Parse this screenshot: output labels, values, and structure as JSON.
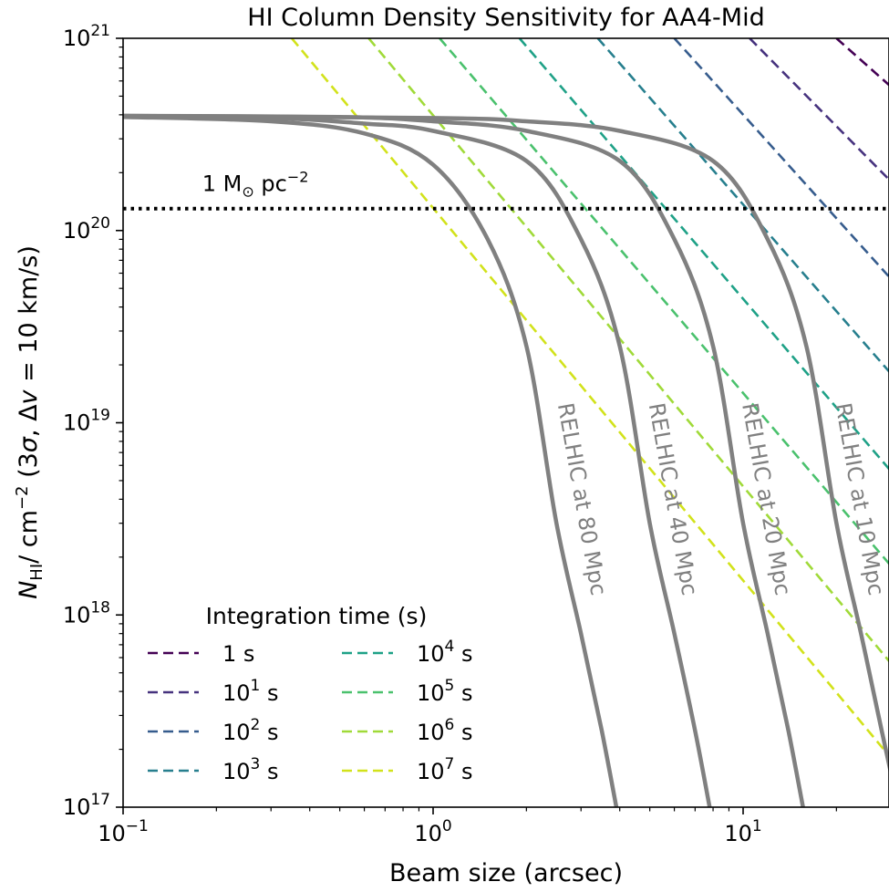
{
  "chart_data": {
    "type": "line",
    "title": "HI Column Density Sensitivity for AA4-Mid",
    "xlabel": "Beam size (arcsec)",
    "ylabel": {
      "prefix": "N",
      "prefix_sub": "HI",
      "unit": "/ cm",
      "unit_sup": "−2",
      "paren_open": " (3",
      "sigma": "σ",
      "comma": ", Δ",
      "nu": "v",
      "rest": " = 10 km/s)"
    },
    "x_scale": "log",
    "y_scale": "log",
    "xlim": [
      0.1,
      30
    ],
    "ylim": [
      1e+17,
      1e+21
    ],
    "x_ticks": [
      {
        "value": 0.1,
        "base": "10",
        "exp": "−1"
      },
      {
        "value": 1,
        "base": "10",
        "exp": "0"
      },
      {
        "value": 10,
        "base": "10",
        "exp": "1"
      }
    ],
    "y_ticks": [
      {
        "value": 1e+17,
        "base": "10",
        "exp": "17"
      },
      {
        "value": 1e+18,
        "base": "10",
        "exp": "18"
      },
      {
        "value": 1e+19,
        "base": "10",
        "exp": "19"
      },
      {
        "value": 1e+20,
        "base": "10",
        "exp": "20"
      },
      {
        "value": 1e+21,
        "base": "10",
        "exp": "21"
      }
    ],
    "grid": false,
    "legend": {
      "title": "Integration time (s)",
      "placement": "lower-left",
      "columns": 2
    },
    "sensitivity_series": [
      {
        "base": "1",
        "exp": "",
        "unit": " s",
        "t_seconds": 1,
        "color": "#440154",
        "points": [
          [
            20,
            1e+21
          ],
          [
            30,
            5.6e+20
          ]
        ]
      },
      {
        "base": "10",
        "exp": "1",
        "unit": " s",
        "t_seconds": 10,
        "color": "#46327e",
        "points": [
          [
            10.5,
            1e+21
          ],
          [
            30,
            1.8e+20
          ]
        ]
      },
      {
        "base": "10",
        "exp": "2",
        "unit": " s",
        "t_seconds": 100,
        "color": "#365c8d",
        "points": [
          [
            6.0,
            1e+21
          ],
          [
            30,
            5.6e+19
          ]
        ]
      },
      {
        "base": "10",
        "exp": "3",
        "unit": " s",
        "t_seconds": 1000,
        "color": "#277f8e",
        "points": [
          [
            3.4,
            1e+21
          ],
          [
            30,
            1.8e+19
          ]
        ]
      },
      {
        "base": "10",
        "exp": "4",
        "unit": " s",
        "t_seconds": 10000,
        "color": "#1fa187",
        "points": [
          [
            1.9,
            1e+21
          ],
          [
            30,
            5.6e+18
          ]
        ]
      },
      {
        "base": "10",
        "exp": "5",
        "unit": " s",
        "t_seconds": 100000,
        "color": "#4ac16d",
        "points": [
          [
            1.05,
            1e+21
          ],
          [
            30,
            1.8e+18
          ]
        ]
      },
      {
        "base": "10",
        "exp": "6",
        "unit": " s",
        "t_seconds": 1000000,
        "color": "#a0da39",
        "points": [
          [
            0.62,
            1e+21
          ],
          [
            30,
            5.6e+17
          ]
        ]
      },
      {
        "base": "10",
        "exp": "7",
        "unit": " s",
        "t_seconds": 10000000,
        "color": "#d2e21b",
        "points": [
          [
            0.35,
            1e+21
          ],
          [
            30,
            1.8e+17
          ]
        ]
      }
    ],
    "relhic_series": [
      {
        "label": "RELHIC at 80 Mpc",
        "color": "#808080",
        "label_at": [
          3.0,
          4e+18
        ],
        "points": [
          [
            0.1,
            3.9e+20
          ],
          [
            0.3,
            3.7e+20
          ],
          [
            0.6,
            3.2e+20
          ],
          [
            1.0,
            2.2e+20
          ],
          [
            1.5,
            9e+19
          ],
          [
            2.0,
            2.5e+19
          ],
          [
            2.5,
            3e+18
          ],
          [
            3.0,
            8e+17
          ],
          [
            3.5,
            2.5e+17
          ],
          [
            3.9,
            1e+17
          ]
        ]
      },
      {
        "label": "RELHIC at 40 Mpc",
        "color": "#808080",
        "label_at": [
          5.9,
          4e+18
        ],
        "points": [
          [
            0.1,
            3.9e+20
          ],
          [
            0.3,
            3.85e+20
          ],
          [
            0.6,
            3.6e+20
          ],
          [
            1.0,
            3.3e+20
          ],
          [
            2.0,
            2.3e+20
          ],
          [
            3.0,
            9e+19
          ],
          [
            4.0,
            2.5e+19
          ],
          [
            5.0,
            3e+18
          ],
          [
            6.0,
            8e+17
          ],
          [
            7.0,
            2.5e+17
          ],
          [
            7.8,
            1e+17
          ]
        ]
      },
      {
        "label": "RELHIC at 20 Mpc",
        "color": "#808080",
        "label_at": [
          11.8,
          4e+18
        ],
        "points": [
          [
            0.1,
            3.95e+20
          ],
          [
            0.5,
            3.9e+20
          ],
          [
            1.0,
            3.7e+20
          ],
          [
            2.0,
            3.3e+20
          ],
          [
            4.0,
            2.3e+20
          ],
          [
            6.0,
            9e+19
          ],
          [
            8.0,
            2.5e+19
          ],
          [
            10.0,
            3e+18
          ],
          [
            12.0,
            8e+17
          ],
          [
            14.0,
            2.5e+17
          ],
          [
            15.6,
            1e+17
          ]
        ]
      },
      {
        "label": "RELHIC at 10 Mpc",
        "color": "#808080",
        "label_at": [
          23.6,
          4e+18
        ],
        "points": [
          [
            0.1,
            3.95e+20
          ],
          [
            1.0,
            3.85e+20
          ],
          [
            2.0,
            3.7e+20
          ],
          [
            4.0,
            3.3e+20
          ],
          [
            8.0,
            2.3e+20
          ],
          [
            12.0,
            9e+19
          ],
          [
            16.0,
            2.5e+19
          ],
          [
            20.0,
            3e+18
          ],
          [
            24.0,
            8e+17
          ],
          [
            28.0,
            2.5e+17
          ],
          [
            30.0,
            1.5e+17
          ]
        ]
      }
    ],
    "reference_line": {
      "y": 1.3e+20,
      "label_prefix": "1 M",
      "label_sub": "⊙",
      "label_mid": " pc",
      "label_sup": "−2",
      "label_at_x": 0.18
    }
  }
}
